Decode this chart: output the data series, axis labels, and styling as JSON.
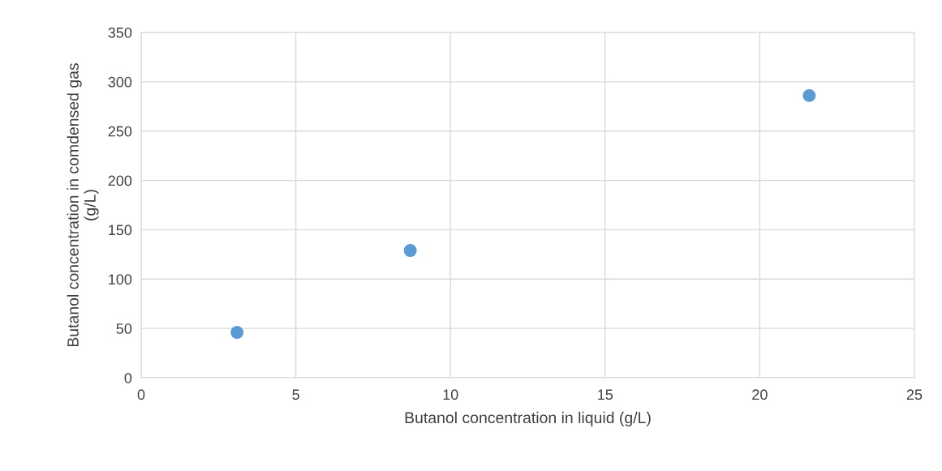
{
  "chart_data": {
    "type": "scatter",
    "xlabel": "Butanol concentration in liquid (g/L)",
    "ylabel": "Butanol concentration in comdensed gas\n(g/L)",
    "x": [
      3.1,
      8.7,
      21.6
    ],
    "series": [
      {
        "color": "#5b9bd5",
        "values": [
          46,
          129,
          286
        ]
      }
    ],
    "xlim": [
      0,
      25
    ],
    "xticks": [
      0,
      5,
      10,
      15,
      20,
      25
    ],
    "ylim": [
      0,
      350
    ],
    "yticks": [
      0,
      50,
      100,
      150,
      200,
      250,
      300,
      350
    ],
    "grid": true,
    "marker": "circle"
  }
}
